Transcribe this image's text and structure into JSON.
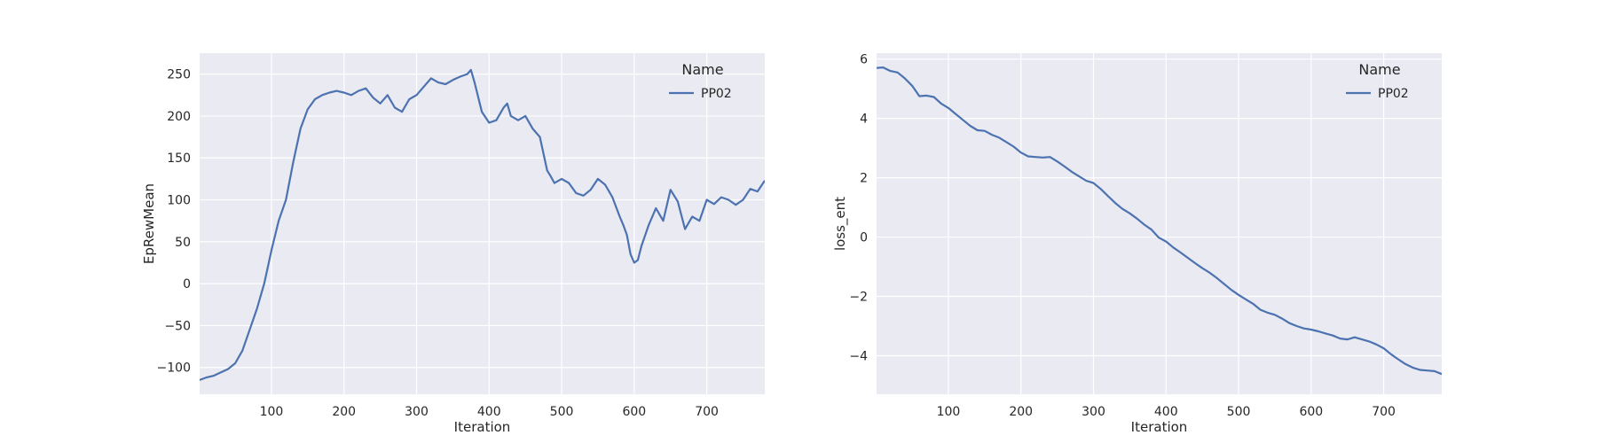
{
  "chart_data": [
    {
      "type": "line",
      "title": "",
      "xlabel": "Iteration",
      "ylabel": "EpRewMean",
      "xlim": [
        1,
        780
      ],
      "ylim": [
        -132,
        275
      ],
      "xticks": [
        100,
        200,
        300,
        400,
        500,
        600,
        700
      ],
      "yticks": [
        -100,
        -50,
        0,
        50,
        100,
        150,
        200,
        250
      ],
      "ytick_labels": [
        "−100",
        "−50",
        "0",
        "50",
        "100",
        "150",
        "200",
        "250"
      ],
      "grid": true,
      "legend": {
        "title": "Name",
        "placement": "top-right"
      },
      "series": [
        {
          "name": "PP02",
          "color": "#4c72b0",
          "x": [
            1,
            10,
            20,
            30,
            40,
            50,
            60,
            70,
            80,
            90,
            100,
            110,
            120,
            130,
            140,
            150,
            160,
            170,
            180,
            190,
            200,
            210,
            220,
            230,
            240,
            250,
            260,
            270,
            280,
            290,
            300,
            310,
            320,
            330,
            340,
            350,
            360,
            370,
            375,
            380,
            390,
            400,
            410,
            420,
            425,
            430,
            440,
            450,
            460,
            470,
            480,
            485,
            490,
            500,
            510,
            520,
            530,
            540,
            550,
            560,
            570,
            580,
            585,
            590,
            595,
            600,
            605,
            610,
            620,
            630,
            640,
            650,
            660,
            670,
            680,
            690,
            700,
            710,
            720,
            730,
            740,
            750,
            760,
            770,
            780
          ],
          "y": [
            -115,
            -112,
            -110,
            -106,
            -102,
            -95,
            -80,
            -55,
            -30,
            0,
            40,
            75,
            100,
            145,
            185,
            208,
            220,
            225,
            228,
            230,
            228,
            225,
            230,
            233,
            222,
            215,
            225,
            210,
            205,
            220,
            225,
            235,
            245,
            240,
            238,
            243,
            247,
            250,
            255,
            240,
            205,
            192,
            195,
            210,
            215,
            200,
            195,
            200,
            185,
            175,
            135,
            128,
            120,
            125,
            120,
            108,
            105,
            112,
            125,
            118,
            103,
            80,
            70,
            58,
            35,
            25,
            28,
            45,
            70,
            90,
            75,
            112,
            98,
            65,
            80,
            75,
            100,
            95,
            103,
            100,
            94,
            100,
            113,
            110,
            123
          ]
        }
      ]
    },
    {
      "type": "line",
      "title": "",
      "xlabel": "Iteration",
      "ylabel": "loss_ent",
      "xlim": [
        1,
        780
      ],
      "ylim": [
        -5.3,
        6.2
      ],
      "xticks": [
        100,
        200,
        300,
        400,
        500,
        600,
        700
      ],
      "yticks": [
        -4,
        -2,
        0,
        2,
        4,
        6
      ],
      "ytick_labels": [
        "−4",
        "−2",
        "0",
        "2",
        "4",
        "6"
      ],
      "grid": true,
      "legend": {
        "title": "Name",
        "placement": "top-right"
      },
      "series": [
        {
          "name": "PP02",
          "color": "#4c72b0",
          "x": [
            1,
            10,
            20,
            30,
            40,
            50,
            60,
            70,
            80,
            90,
            100,
            110,
            120,
            130,
            140,
            150,
            160,
            170,
            180,
            190,
            200,
            210,
            220,
            230,
            240,
            250,
            260,
            270,
            280,
            290,
            300,
            310,
            320,
            330,
            340,
            350,
            360,
            370,
            380,
            390,
            400,
            410,
            420,
            430,
            440,
            450,
            460,
            470,
            480,
            490,
            500,
            510,
            520,
            530,
            540,
            550,
            560,
            570,
            580,
            590,
            600,
            610,
            620,
            630,
            640,
            650,
            660,
            670,
            680,
            690,
            700,
            710,
            720,
            730,
            740,
            750,
            760,
            770,
            780
          ],
          "y": [
            5.7,
            5.72,
            5.6,
            5.55,
            5.35,
            5.1,
            4.75,
            4.77,
            4.72,
            4.5,
            4.35,
            4.15,
            3.95,
            3.75,
            3.6,
            3.58,
            3.45,
            3.35,
            3.2,
            3.05,
            2.85,
            2.72,
            2.7,
            2.68,
            2.7,
            2.55,
            2.38,
            2.2,
            2.05,
            1.9,
            1.82,
            1.62,
            1.38,
            1.15,
            0.95,
            0.8,
            0.62,
            0.42,
            0.25,
            -0.02,
            -0.15,
            -0.35,
            -0.52,
            -0.7,
            -0.88,
            -1.05,
            -1.2,
            -1.38,
            -1.58,
            -1.78,
            -1.95,
            -2.1,
            -2.25,
            -2.45,
            -2.55,
            -2.62,
            -2.75,
            -2.9,
            -3.0,
            -3.08,
            -3.12,
            -3.18,
            -3.25,
            -3.32,
            -3.42,
            -3.45,
            -3.38,
            -3.45,
            -3.52,
            -3.62,
            -3.75,
            -3.95,
            -4.12,
            -4.28,
            -4.4,
            -4.48,
            -4.5,
            -4.52,
            -4.62
          ]
        }
      ]
    }
  ]
}
